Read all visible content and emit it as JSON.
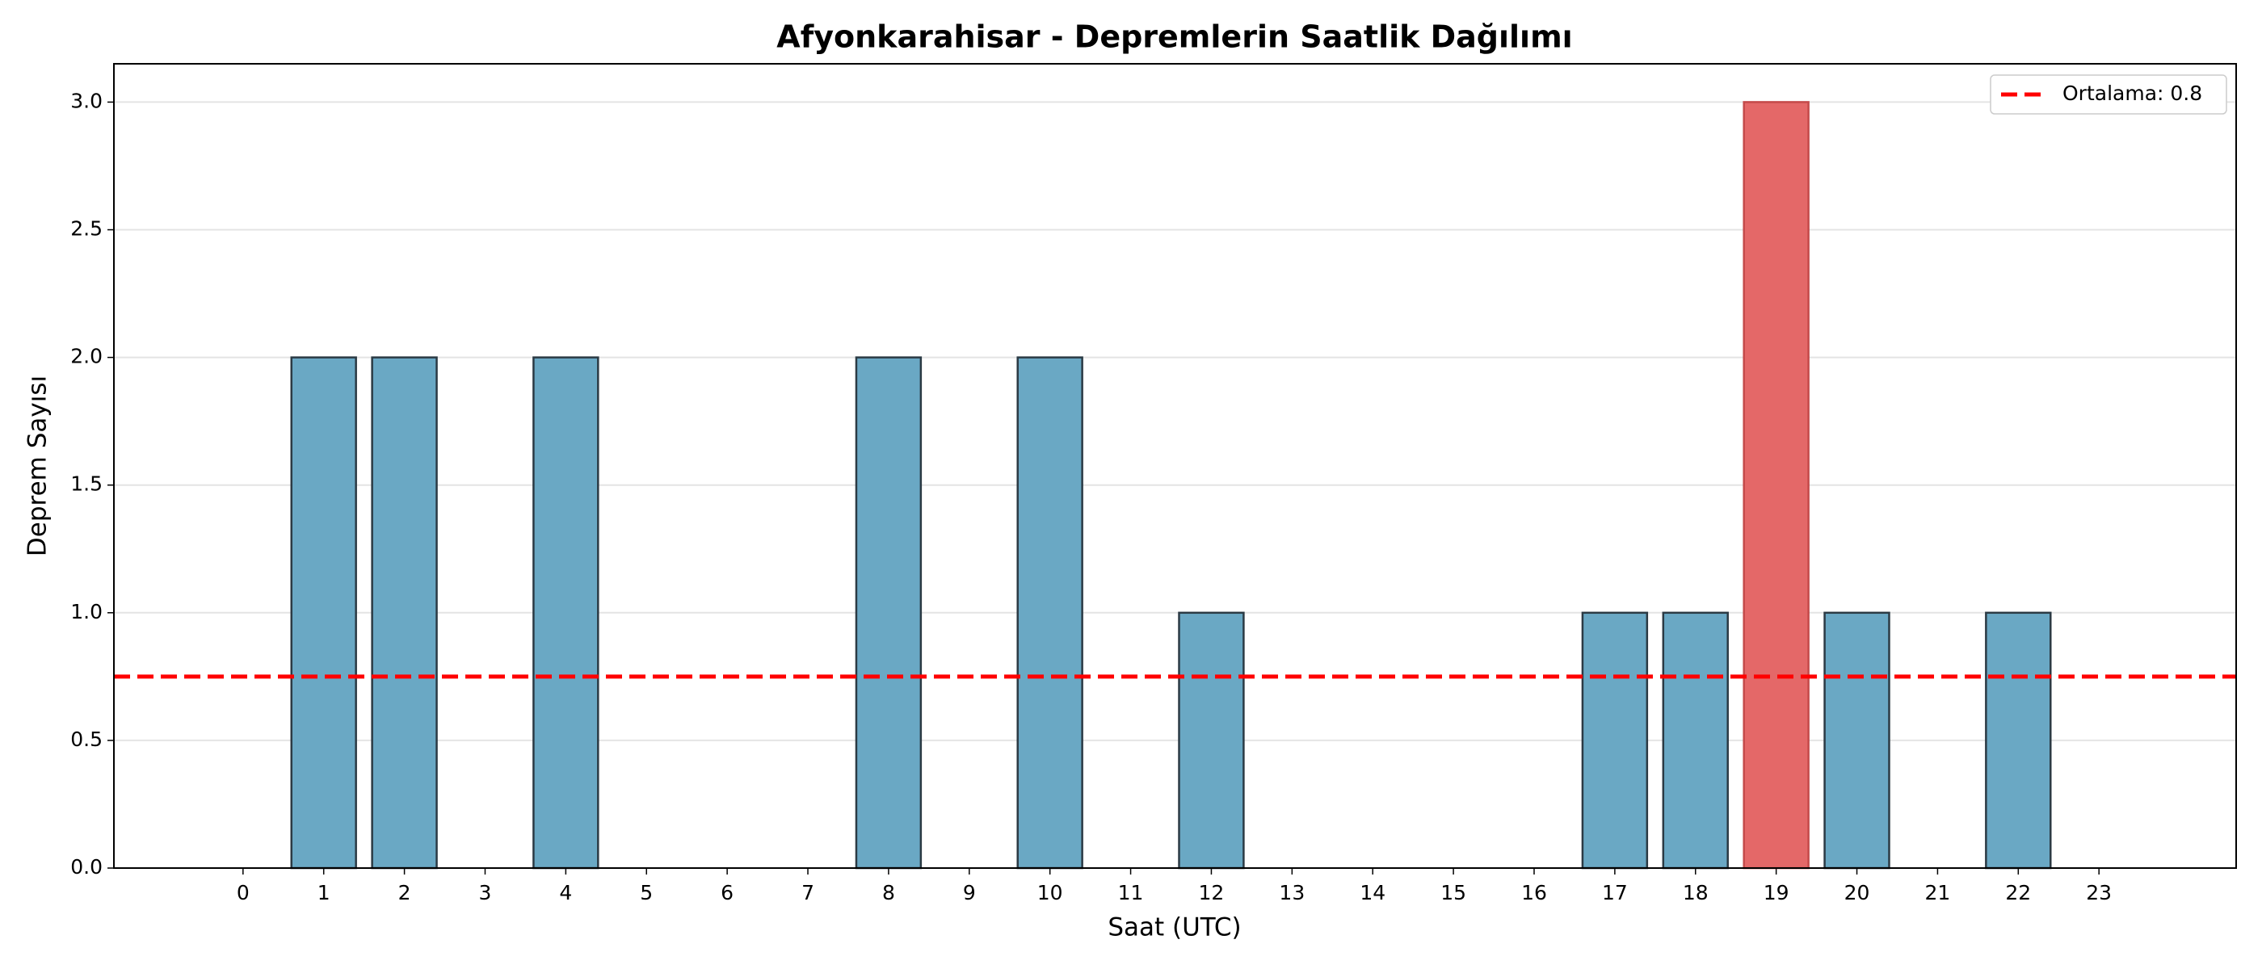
{
  "chart_data": {
    "type": "bar",
    "title": "Afyonkarahisar - Depremlerin Saatlik Dağılımı",
    "x_label": "Saat (UTC)",
    "y_label": "Deprem Sayısı",
    "x": [
      0,
      1,
      2,
      3,
      4,
      5,
      6,
      7,
      8,
      9,
      10,
      11,
      12,
      13,
      14,
      15,
      16,
      17,
      18,
      19,
      20,
      21,
      22,
      23
    ],
    "values": [
      0,
      2,
      2,
      0,
      2,
      0,
      0,
      0,
      2,
      0,
      2,
      0,
      1,
      0,
      0,
      0,
      0,
      1,
      1,
      3,
      1,
      0,
      1,
      0
    ],
    "colors": [
      "#6aa8c4",
      "#6aa8c4",
      "#6aa8c4",
      "#6aa8c4",
      "#6aa8c4",
      "#6aa8c4",
      "#6aa8c4",
      "#6aa8c4",
      "#6aa8c4",
      "#6aa8c4",
      "#6aa8c4",
      "#6aa8c4",
      "#6aa8c4",
      "#6aa8c4",
      "#6aa8c4",
      "#6aa8c4",
      "#6aa8c4",
      "#6aa8c4",
      "#6aa8c4",
      "#e46868",
      "#6aa8c4",
      "#6aa8c4",
      "#6aa8c4",
      "#6aa8c4"
    ],
    "xlim": [
      -1.6,
      24.7
    ],
    "xticks": [
      0,
      1,
      2,
      3,
      4,
      5,
      6,
      7,
      8,
      9,
      10,
      11,
      12,
      13,
      14,
      15,
      16,
      17,
      18,
      19,
      20,
      21,
      22,
      23
    ],
    "ylim": [
      0,
      3.15
    ],
    "yticks": [
      {
        "value": 0,
        "label": "0.0"
      },
      {
        "value": 0.5,
        "label": "0.5"
      },
      {
        "value": 1,
        "label": "1.0"
      },
      {
        "value": 1.5,
        "label": "1.5"
      },
      {
        "value": 2,
        "label": "2.0"
      },
      {
        "value": 2.5,
        "label": "2.5"
      },
      {
        "value": 3,
        "label": "3.0"
      }
    ],
    "grid": true,
    "mean_line": {
      "value": 0.75,
      "label": "Ortalama: 0.8",
      "color": "#ff0000"
    },
    "legend": "upper-right"
  }
}
